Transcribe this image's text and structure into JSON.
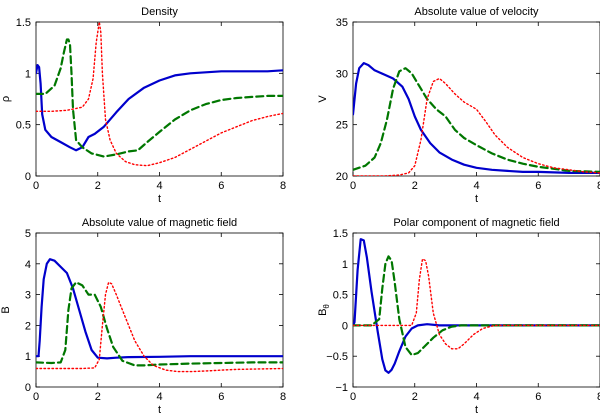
{
  "chart_data": [
    {
      "type": "line",
      "title": "Density",
      "xlabel": "t",
      "ylabel": "ρ",
      "ylabel_sub": "",
      "xlim": [
        0,
        8
      ],
      "ylim": [
        0,
        1.5
      ],
      "xticks": [
        0,
        2,
        4,
        6,
        8
      ],
      "yticks": [
        0,
        0.5,
        1,
        1.5
      ],
      "yticklabels": [
        "0",
        "0.5",
        "1",
        "1.5"
      ],
      "series": [
        {
          "name": "solid-blue",
          "color": "#0000cc",
          "dash": "solid",
          "x": [
            0,
            0.05,
            0.1,
            0.15,
            0.2,
            0.3,
            0.5,
            0.8,
            1.1,
            1.3,
            1.5,
            1.7,
            1.9,
            2.2,
            2.6,
            3.0,
            3.5,
            4.0,
            4.5,
            5.0,
            5.5,
            6.0,
            6.5,
            7.0,
            7.5,
            8.0
          ],
          "y": [
            1.0,
            1.08,
            1.06,
            0.9,
            0.6,
            0.45,
            0.38,
            0.33,
            0.28,
            0.25,
            0.28,
            0.38,
            0.41,
            0.48,
            0.62,
            0.75,
            0.86,
            0.93,
            0.98,
            1.0,
            1.01,
            1.02,
            1.02,
            1.02,
            1.02,
            1.03
          ]
        },
        {
          "name": "dashed-green",
          "color": "#007700",
          "dash": "dashed",
          "x": [
            0,
            0.3,
            0.6,
            0.8,
            0.9,
            1.0,
            1.05,
            1.1,
            1.15,
            1.2,
            1.3,
            1.5,
            1.8,
            2.2,
            2.6,
            3.0,
            3.3,
            3.6,
            4.0,
            4.5,
            5.0,
            5.5,
            6.0,
            6.5,
            7.0,
            7.5,
            8.0
          ],
          "y": [
            0.8,
            0.8,
            0.88,
            1.05,
            1.2,
            1.33,
            1.33,
            1.28,
            1.0,
            0.65,
            0.35,
            0.28,
            0.22,
            0.19,
            0.21,
            0.24,
            0.25,
            0.33,
            0.43,
            0.55,
            0.64,
            0.7,
            0.74,
            0.76,
            0.77,
            0.78,
            0.78
          ]
        },
        {
          "name": "dotted-red",
          "color": "#ff0000",
          "dash": "dotted",
          "x": [
            0,
            0.5,
            1.0,
            1.5,
            1.7,
            1.85,
            1.95,
            2.05,
            2.1,
            2.15,
            2.25,
            2.4,
            2.6,
            2.9,
            3.2,
            3.6,
            4.0,
            4.5,
            5.0,
            5.5,
            6.0,
            6.5,
            7.0,
            7.5,
            8.0
          ],
          "y": [
            0.63,
            0.63,
            0.64,
            0.67,
            0.75,
            0.95,
            1.3,
            1.5,
            1.4,
            1.0,
            0.55,
            0.35,
            0.22,
            0.14,
            0.11,
            0.1,
            0.13,
            0.18,
            0.26,
            0.34,
            0.42,
            0.48,
            0.54,
            0.58,
            0.61
          ]
        }
      ]
    },
    {
      "type": "line",
      "title": "Absolute value of velocity",
      "xlabel": "t",
      "ylabel": "V",
      "ylabel_sub": "",
      "xlim": [
        0,
        8
      ],
      "ylim": [
        20,
        35
      ],
      "xticks": [
        0,
        2,
        4,
        6,
        8
      ],
      "yticks": [
        20,
        25,
        30,
        35
      ],
      "yticklabels": [
        "20",
        "25",
        "30",
        "35"
      ],
      "series": [
        {
          "name": "solid-blue",
          "color": "#0000cc",
          "dash": "solid",
          "x": [
            0,
            0.1,
            0.2,
            0.35,
            0.5,
            0.7,
            1.0,
            1.3,
            1.6,
            1.8,
            2.0,
            2.2,
            2.5,
            2.8,
            3.2,
            3.6,
            4.0,
            4.5,
            5.0,
            5.5,
            6.0,
            7.0,
            8.0
          ],
          "y": [
            26.0,
            29.0,
            30.5,
            31.0,
            30.8,
            30.3,
            29.9,
            29.5,
            28.7,
            27.5,
            25.8,
            24.5,
            23.2,
            22.3,
            21.6,
            21.1,
            20.8,
            20.6,
            20.5,
            20.4,
            20.4,
            20.3,
            20.3
          ]
        },
        {
          "name": "dashed-green",
          "color": "#007700",
          "dash": "dashed",
          "x": [
            0,
            0.4,
            0.7,
            0.9,
            1.1,
            1.3,
            1.5,
            1.7,
            1.9,
            2.1,
            2.4,
            2.7,
            3.0,
            3.3,
            3.6,
            4.0,
            4.5,
            5.0,
            5.5,
            6.0,
            6.5,
            7.0,
            8.0
          ],
          "y": [
            20.6,
            21.0,
            21.8,
            23.2,
            25.5,
            28.5,
            30.2,
            30.5,
            30.0,
            29.0,
            27.5,
            26.5,
            25.8,
            24.5,
            23.7,
            23.0,
            22.2,
            21.6,
            21.2,
            20.9,
            20.7,
            20.5,
            20.4
          ]
        },
        {
          "name": "dotted-red",
          "color": "#ff0000",
          "dash": "dotted",
          "x": [
            0,
            0.5,
            1.0,
            1.5,
            1.8,
            2.0,
            2.2,
            2.4,
            2.6,
            2.8,
            3.0,
            3.3,
            3.6,
            4.0,
            4.3,
            4.6,
            5.0,
            5.5,
            6.0,
            6.5,
            7.0,
            7.5,
            8.0
          ],
          "y": [
            20.0,
            20.0,
            20.0,
            20.1,
            20.3,
            21.0,
            23.5,
            27.5,
            29.2,
            29.5,
            29.0,
            28.0,
            27.2,
            26.5,
            25.3,
            24.0,
            22.8,
            21.8,
            21.2,
            20.8,
            20.6,
            20.4,
            20.3
          ]
        }
      ]
    },
    {
      "type": "line",
      "title": "Absolute value of magnetic field",
      "xlabel": "t",
      "ylabel": "B",
      "ylabel_sub": "",
      "xlim": [
        0,
        8
      ],
      "ylim": [
        0,
        5
      ],
      "xticks": [
        0,
        2,
        4,
        6,
        8
      ],
      "yticks": [
        0,
        1,
        2,
        3,
        4,
        5
      ],
      "yticklabels": [
        "0",
        "1",
        "2",
        "3",
        "4",
        "5"
      ],
      "series": [
        {
          "name": "solid-blue",
          "color": "#0000cc",
          "dash": "solid",
          "x": [
            0,
            0.08,
            0.12,
            0.18,
            0.25,
            0.35,
            0.45,
            0.6,
            0.8,
            1.0,
            1.2,
            1.4,
            1.6,
            1.8,
            2.0,
            2.3,
            2.6,
            3.0,
            4.0,
            5.0,
            6.0,
            7.0,
            8.0
          ],
          "y": [
            1.0,
            1.0,
            1.5,
            2.6,
            3.5,
            4.0,
            4.15,
            4.1,
            3.9,
            3.7,
            3.2,
            2.5,
            1.8,
            1.2,
            0.95,
            0.93,
            0.95,
            0.97,
            0.98,
            1.0,
            1.0,
            1.0,
            1.0
          ]
        },
        {
          "name": "dashed-green",
          "color": "#007700",
          "dash": "dashed",
          "x": [
            0,
            0.5,
            0.8,
            0.95,
            1.05,
            1.15,
            1.3,
            1.5,
            1.7,
            1.9,
            2.1,
            2.3,
            2.5,
            2.8,
            3.2,
            3.5,
            4.0,
            5.0,
            6.0,
            7.0,
            8.0
          ],
          "y": [
            0.8,
            0.78,
            0.8,
            1.2,
            2.5,
            3.2,
            3.4,
            3.3,
            3.0,
            3.0,
            2.6,
            1.9,
            1.3,
            0.85,
            0.7,
            0.7,
            0.73,
            0.76,
            0.78,
            0.8,
            0.8
          ]
        },
        {
          "name": "dotted-red",
          "color": "#ff0000",
          "dash": "dotted",
          "x": [
            0,
            0.5,
            1.0,
            1.5,
            1.9,
            2.05,
            2.15,
            2.25,
            2.35,
            2.45,
            2.6,
            2.8,
            3.0,
            3.2,
            3.5,
            3.8,
            4.2,
            4.6,
            5.0,
            5.5,
            6.0,
            6.5,
            7.0,
            8.0
          ],
          "y": [
            0.6,
            0.6,
            0.6,
            0.6,
            0.62,
            0.9,
            2.0,
            3.0,
            3.4,
            3.35,
            3.0,
            2.5,
            2.0,
            1.5,
            1.0,
            0.7,
            0.55,
            0.5,
            0.5,
            0.52,
            0.55,
            0.57,
            0.58,
            0.6
          ]
        }
      ]
    },
    {
      "type": "line",
      "title": "Polar component of magnetic field",
      "xlabel": "t",
      "ylabel": "B",
      "ylabel_sub": "θ",
      "xlim": [
        0,
        8
      ],
      "ylim": [
        -1,
        1.5
      ],
      "xticks": [
        0,
        2,
        4,
        6,
        8
      ],
      "yticks": [
        -1,
        -0.5,
        0,
        0.5,
        1,
        1.5
      ],
      "yticklabels": [
        "−1",
        "−0.5",
        "0",
        "0.5",
        "1",
        "1.5"
      ],
      "series": [
        {
          "name": "solid-blue",
          "color": "#0000cc",
          "dash": "solid",
          "x": [
            0,
            0.05,
            0.15,
            0.25,
            0.35,
            0.45,
            0.6,
            0.8,
            0.95,
            1.05,
            1.15,
            1.25,
            1.35,
            1.5,
            1.7,
            1.9,
            2.1,
            2.4,
            2.8,
            3.5,
            5.0,
            8.0
          ],
          "y": [
            0,
            0.05,
            0.9,
            1.4,
            1.38,
            1.1,
            0.55,
            -0.1,
            -0.55,
            -0.73,
            -0.77,
            -0.72,
            -0.62,
            -0.42,
            -0.18,
            -0.05,
            0.0,
            0.02,
            0.0,
            0.0,
            0.0,
            0.0
          ]
        },
        {
          "name": "dashed-green",
          "color": "#007700",
          "dash": "dashed",
          "x": [
            0,
            0.6,
            0.85,
            0.95,
            1.05,
            1.15,
            1.25,
            1.35,
            1.5,
            1.7,
            1.9,
            2.1,
            2.3,
            2.6,
            2.9,
            3.2,
            3.5,
            4.0,
            5.0,
            8.0
          ],
          "y": [
            0,
            0,
            0.1,
            0.6,
            1.0,
            1.12,
            1.05,
            0.7,
            0.1,
            -0.35,
            -0.48,
            -0.45,
            -0.35,
            -0.2,
            -0.08,
            -0.02,
            0.0,
            0.0,
            0.0,
            0.0
          ]
        },
        {
          "name": "dotted-red",
          "color": "#ff0000",
          "dash": "dotted",
          "x": [
            0,
            1.0,
            1.9,
            2.05,
            2.15,
            2.25,
            2.35,
            2.45,
            2.6,
            2.8,
            3.0,
            3.2,
            3.4,
            3.6,
            3.9,
            4.2,
            4.6,
            5.0,
            8.0
          ],
          "y": [
            0,
            0,
            0,
            0.2,
            0.75,
            1.08,
            1.05,
            0.8,
            0.2,
            -0.15,
            -0.3,
            -0.38,
            -0.38,
            -0.3,
            -0.15,
            -0.05,
            0.0,
            0.0,
            0.0
          ]
        }
      ]
    }
  ]
}
